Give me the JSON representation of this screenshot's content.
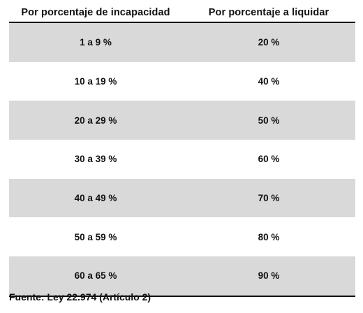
{
  "table": {
    "headers": [
      "Por porcentaje de incapacidad",
      "Por porcentaje a liquidar"
    ],
    "rows": [
      [
        "1 a 9 %",
        "20 %"
      ],
      [
        "10 a 19 %",
        "40 %"
      ],
      [
        "20 a 29 %",
        "50 %"
      ],
      [
        "30 a 39 %",
        "60 %"
      ],
      [
        "40 a 49 %",
        "70 %"
      ],
      [
        "50 a 59 %",
        "80 %"
      ],
      [
        "60 a 65 %",
        "90 %"
      ]
    ],
    "shade_color": "#d9d9d9"
  },
  "source": "Fuente: Ley 22.974 (Artículo 2)"
}
